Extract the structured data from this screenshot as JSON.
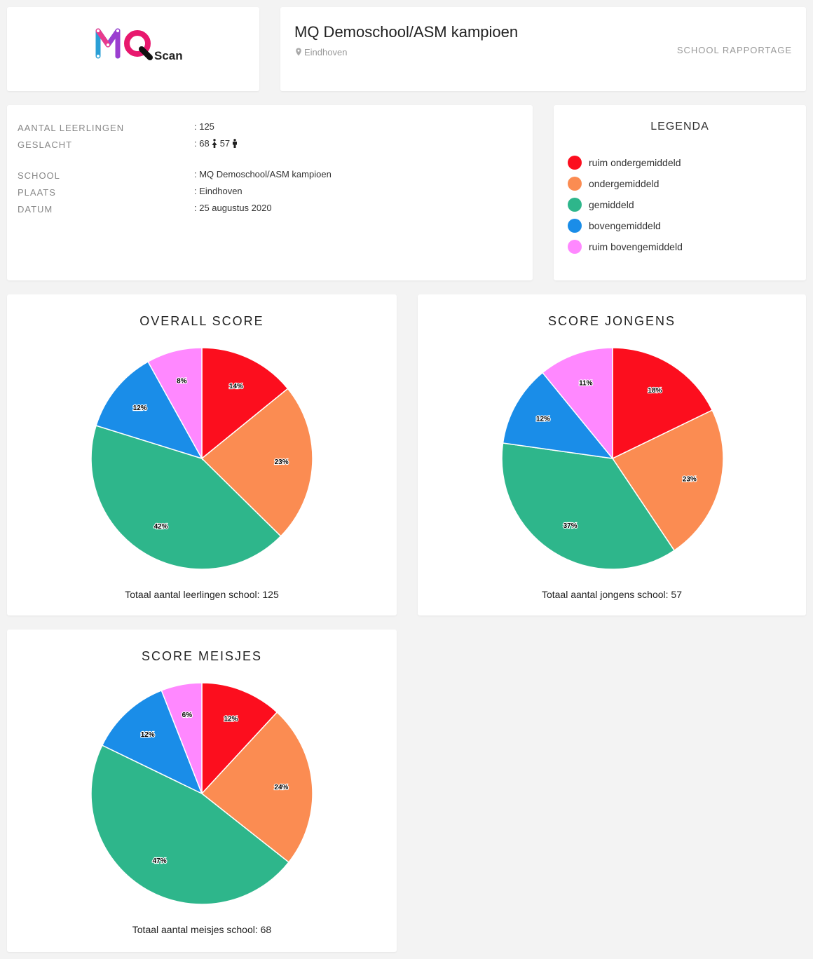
{
  "header": {
    "logo_text": "MQ",
    "logo_suffix": "Scan",
    "school_title": "MQ Demoschool/ASM kampioen",
    "city": "Eindhoven",
    "report_label": "SCHOOL RAPPORTAGE"
  },
  "info": {
    "students_label": "AANTAL LEERLINGEN",
    "students_value": ": 125",
    "gender_label": "GESLACHT",
    "gender_prefix": ": ",
    "girls_count": "68",
    "boys_count": "57",
    "school_label": "SCHOOL",
    "school_value": ": MQ Demoschool/ASM kampioen",
    "place_label": "PLAATS",
    "place_value": ": Eindhoven",
    "date_label": "DATUM",
    "date_value": ": 25 augustus 2020"
  },
  "legend": {
    "title": "LEGENDA",
    "items": [
      {
        "label": "ruim ondergemiddeld",
        "color": "#fc0e1e"
      },
      {
        "label": "ondergemiddeld",
        "color": "#fb8c52"
      },
      {
        "label": "gemiddeld",
        "color": "#2eb68b"
      },
      {
        "label": "bovengemiddeld",
        "color": "#1a8de8"
      },
      {
        "label": "ruim bovengemiddeld",
        "color": "#ff88ff"
      }
    ]
  },
  "chart_data": [
    {
      "type": "pie",
      "title": "OVERALL SCORE",
      "categories": [
        "ruim ondergemiddeld",
        "ondergemiddeld",
        "gemiddeld",
        "bovengemiddeld",
        "ruim bovengemiddeld"
      ],
      "values": [
        14,
        23,
        42,
        12,
        8
      ],
      "labels": [
        "14%",
        "23%",
        "42%",
        "12%",
        "8%"
      ],
      "footer": "Totaal aantal leerlingen school: 125"
    },
    {
      "type": "pie",
      "title": "SCORE JONGENS",
      "categories": [
        "ruim ondergemiddeld",
        "ondergemiddeld",
        "gemiddeld",
        "bovengemiddeld",
        "ruim bovengemiddeld"
      ],
      "values": [
        18,
        23,
        37,
        12,
        11
      ],
      "labels": [
        "18%",
        "23%",
        "37%",
        "12%",
        "11%"
      ],
      "footer": "Totaal aantal jongens school: 57"
    },
    {
      "type": "pie",
      "title": "SCORE MEISJES",
      "categories": [
        "ruim ondergemiddeld",
        "ondergemiddeld",
        "gemiddeld",
        "bovengemiddeld",
        "ruim bovengemiddeld"
      ],
      "values": [
        12,
        24,
        47,
        12,
        6
      ],
      "labels": [
        "12%",
        "24%",
        "47%",
        "12%",
        "6%"
      ],
      "footer": "Totaal aantal meisjes school: 68"
    }
  ]
}
